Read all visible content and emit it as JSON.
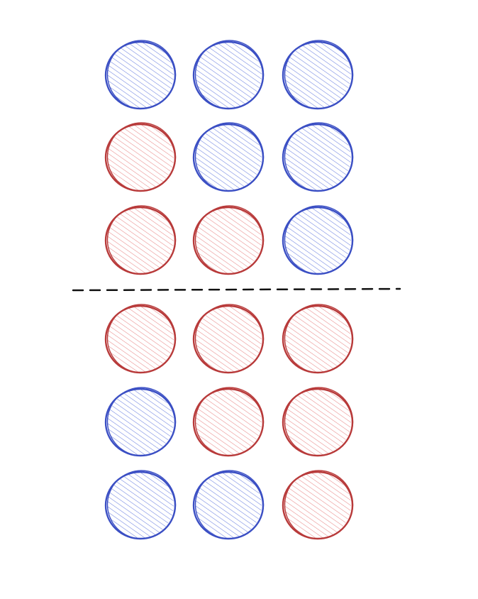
{
  "diagram": {
    "colors": {
      "blue_stroke": "#3b4fc4",
      "blue_fill": "#6b80e0",
      "red_stroke": "#b83a3a",
      "red_fill": "#e88888",
      "divider": "#111111"
    },
    "top_group": {
      "rows": [
        [
          "blue",
          "blue",
          "blue"
        ],
        [
          "red",
          "blue",
          "blue"
        ],
        [
          "red",
          "red",
          "blue"
        ]
      ]
    },
    "bottom_group": {
      "rows": [
        [
          "red",
          "red",
          "red"
        ],
        [
          "blue",
          "red",
          "red"
        ],
        [
          "blue",
          "blue",
          "red"
        ]
      ]
    },
    "divider": {
      "style": "dashed"
    }
  }
}
